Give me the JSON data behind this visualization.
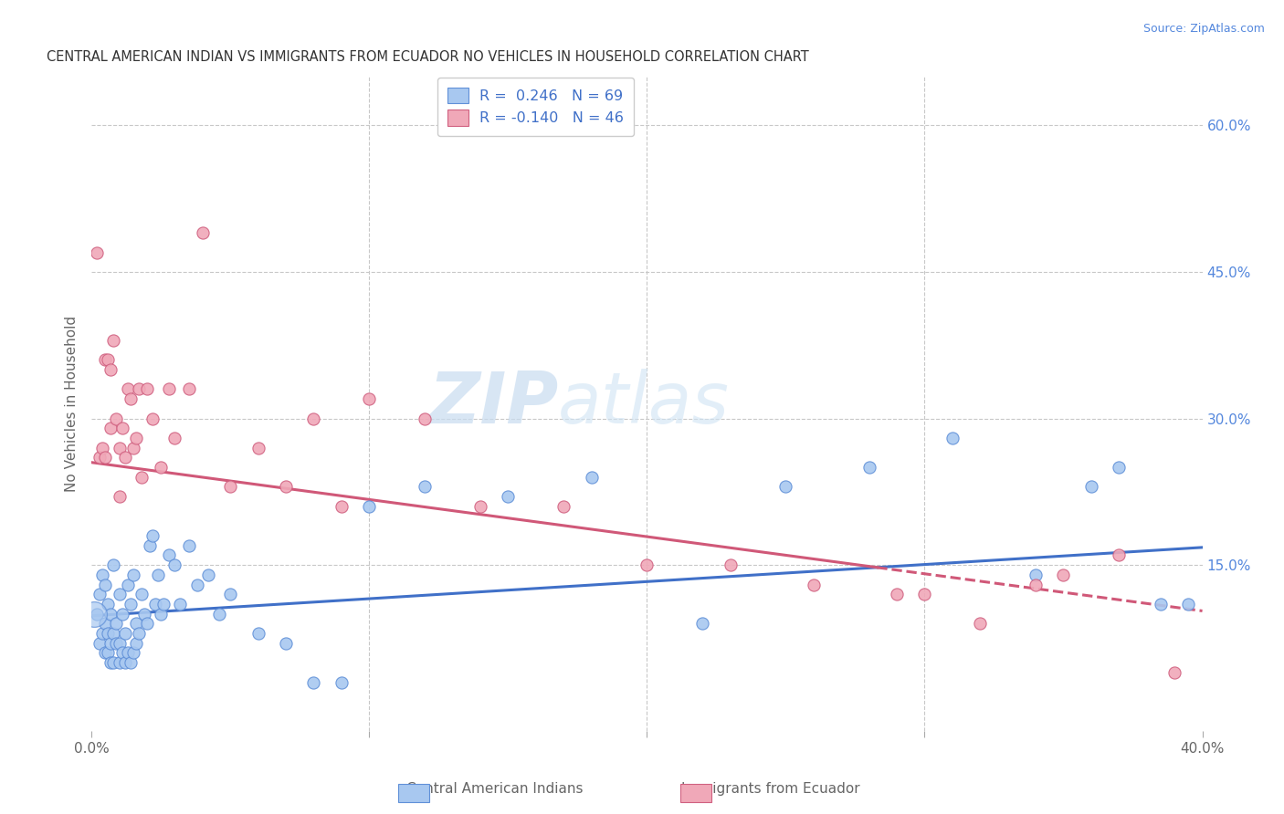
{
  "title": "CENTRAL AMERICAN INDIAN VS IMMIGRANTS FROM ECUADOR NO VEHICLES IN HOUSEHOLD CORRELATION CHART",
  "source": "Source: ZipAtlas.com",
  "ylabel_left": "No Vehicles in Household",
  "x_min": 0.0,
  "x_max": 0.4,
  "y_min": -0.02,
  "y_max": 0.65,
  "right_yticks": [
    0.15,
    0.3,
    0.45,
    0.6
  ],
  "right_yticklabels": [
    "15.0%",
    "30.0%",
    "45.0%",
    "60.0%"
  ],
  "xticks": [
    0.0,
    0.1,
    0.2,
    0.3,
    0.4
  ],
  "xticklabels": [
    "0.0%",
    "",
    "",
    "",
    "40.0%"
  ],
  "legend_R1": "R =  0.246",
  "legend_N1": "N = 69",
  "legend_R2": "R = -0.140",
  "legend_N2": "N = 46",
  "blue_color": "#A8C8F0",
  "pink_color": "#F0A8B8",
  "blue_edge_color": "#6090D8",
  "pink_edge_color": "#D06080",
  "blue_line_color": "#4070C8",
  "pink_line_color": "#D05878",
  "watermark_zip": "ZIP",
  "watermark_atlas": "atlas",
  "legend_label1": "Central American Indians",
  "legend_label2": "Immigrants from Ecuador",
  "blue_intercept": 0.098,
  "blue_slope": 0.175,
  "pink_intercept": 0.255,
  "pink_slope": -0.38,
  "blue_x": [
    0.002,
    0.003,
    0.003,
    0.004,
    0.004,
    0.005,
    0.005,
    0.005,
    0.006,
    0.006,
    0.006,
    0.007,
    0.007,
    0.007,
    0.008,
    0.008,
    0.008,
    0.009,
    0.009,
    0.01,
    0.01,
    0.01,
    0.011,
    0.011,
    0.012,
    0.012,
    0.013,
    0.013,
    0.014,
    0.014,
    0.015,
    0.015,
    0.016,
    0.016,
    0.017,
    0.018,
    0.019,
    0.02,
    0.021,
    0.022,
    0.023,
    0.024,
    0.025,
    0.026,
    0.028,
    0.03,
    0.032,
    0.035,
    0.038,
    0.042,
    0.046,
    0.05,
    0.06,
    0.07,
    0.08,
    0.09,
    0.1,
    0.12,
    0.15,
    0.18,
    0.22,
    0.25,
    0.28,
    0.31,
    0.34,
    0.36,
    0.37,
    0.385,
    0.395
  ],
  "blue_y": [
    0.1,
    0.07,
    0.12,
    0.08,
    0.14,
    0.06,
    0.09,
    0.13,
    0.06,
    0.08,
    0.11,
    0.05,
    0.07,
    0.1,
    0.05,
    0.08,
    0.15,
    0.07,
    0.09,
    0.05,
    0.07,
    0.12,
    0.06,
    0.1,
    0.05,
    0.08,
    0.06,
    0.13,
    0.05,
    0.11,
    0.06,
    0.14,
    0.07,
    0.09,
    0.08,
    0.12,
    0.1,
    0.09,
    0.17,
    0.18,
    0.11,
    0.14,
    0.1,
    0.11,
    0.16,
    0.15,
    0.11,
    0.17,
    0.13,
    0.14,
    0.1,
    0.12,
    0.08,
    0.07,
    0.03,
    0.03,
    0.21,
    0.23,
    0.22,
    0.24,
    0.09,
    0.23,
    0.25,
    0.28,
    0.14,
    0.23,
    0.25,
    0.11,
    0.11
  ],
  "pink_x": [
    0.002,
    0.003,
    0.004,
    0.005,
    0.005,
    0.006,
    0.007,
    0.007,
    0.008,
    0.009,
    0.01,
    0.01,
    0.011,
    0.012,
    0.013,
    0.014,
    0.015,
    0.016,
    0.017,
    0.018,
    0.02,
    0.022,
    0.025,
    0.028,
    0.03,
    0.035,
    0.04,
    0.05,
    0.06,
    0.07,
    0.08,
    0.09,
    0.1,
    0.12,
    0.14,
    0.17,
    0.2,
    0.23,
    0.26,
    0.29,
    0.3,
    0.32,
    0.34,
    0.35,
    0.37,
    0.39
  ],
  "pink_y": [
    0.47,
    0.26,
    0.27,
    0.36,
    0.26,
    0.36,
    0.29,
    0.35,
    0.38,
    0.3,
    0.27,
    0.22,
    0.29,
    0.26,
    0.33,
    0.32,
    0.27,
    0.28,
    0.33,
    0.24,
    0.33,
    0.3,
    0.25,
    0.33,
    0.28,
    0.33,
    0.49,
    0.23,
    0.27,
    0.23,
    0.3,
    0.21,
    0.32,
    0.3,
    0.21,
    0.21,
    0.15,
    0.15,
    0.13,
    0.12,
    0.12,
    0.09,
    0.13,
    0.14,
    0.16,
    0.04
  ]
}
